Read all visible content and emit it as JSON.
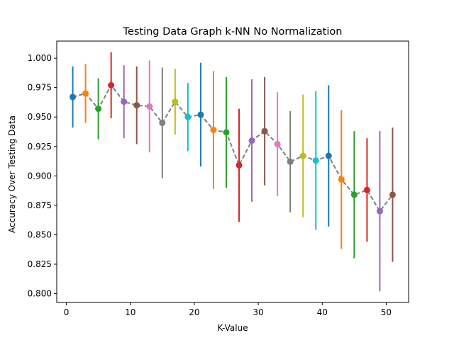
{
  "chart_data": {
    "type": "errorbar-line",
    "title": "Testing Data Graph k-NN No Normalization",
    "xlabel": "K-Value",
    "ylabel": "Accuracy Over Testing Data",
    "xlim": [
      -1.5,
      53.5
    ],
    "ylim": [
      0.7925,
      1.0145
    ],
    "xticks": [
      0,
      10,
      20,
      30,
      40,
      50
    ],
    "yticks": [
      0.8,
      0.825,
      0.85,
      0.875,
      0.9,
      0.925,
      0.95,
      0.975,
      1.0
    ],
    "ytick_labels": [
      "0.800",
      "0.825",
      "0.850",
      "0.875",
      "0.900",
      "0.925",
      "0.950",
      "0.975",
      "1.000"
    ],
    "grid": false,
    "line_color": "#7f7f7f",
    "line_style": "dashed",
    "marker_colors": [
      "#1f77b4",
      "#ff7f0e",
      "#2ca02c",
      "#d62728",
      "#9467bd",
      "#8c564b",
      "#e377c2",
      "#7f7f7f",
      "#bcbd22",
      "#17becf"
    ],
    "points": [
      {
        "x": 1,
        "y": 0.967,
        "err": 0.026
      },
      {
        "x": 3,
        "y": 0.97,
        "err": 0.025
      },
      {
        "x": 5,
        "y": 0.957,
        "err": 0.026
      },
      {
        "x": 7,
        "y": 0.977,
        "err": 0.028
      },
      {
        "x": 9,
        "y": 0.963,
        "err": 0.031
      },
      {
        "x": 11,
        "y": 0.96,
        "err": 0.033
      },
      {
        "x": 13,
        "y": 0.959,
        "err": 0.039
      },
      {
        "x": 15,
        "y": 0.945,
        "err": 0.047
      },
      {
        "x": 17,
        "y": 0.963,
        "err": 0.028
      },
      {
        "x": 19,
        "y": 0.95,
        "err": 0.029
      },
      {
        "x": 21,
        "y": 0.952,
        "err": 0.044
      },
      {
        "x": 23,
        "y": 0.939,
        "err": 0.05
      },
      {
        "x": 25,
        "y": 0.937,
        "err": 0.047
      },
      {
        "x": 27,
        "y": 0.909,
        "err": 0.048
      },
      {
        "x": 29,
        "y": 0.93,
        "err": 0.052
      },
      {
        "x": 31,
        "y": 0.938,
        "err": 0.046
      },
      {
        "x": 33,
        "y": 0.927,
        "err": 0.044
      },
      {
        "x": 35,
        "y": 0.912,
        "err": 0.043
      },
      {
        "x": 37,
        "y": 0.917,
        "err": 0.052
      },
      {
        "x": 39,
        "y": 0.913,
        "err": 0.059
      },
      {
        "x": 41,
        "y": 0.917,
        "err": 0.06
      },
      {
        "x": 43,
        "y": 0.897,
        "err": 0.059
      },
      {
        "x": 45,
        "y": 0.884,
        "err": 0.054
      },
      {
        "x": 47,
        "y": 0.888,
        "err": 0.044
      },
      {
        "x": 49,
        "y": 0.87,
        "err": 0.068
      },
      {
        "x": 51,
        "y": 0.884,
        "err": 0.057
      }
    ]
  }
}
